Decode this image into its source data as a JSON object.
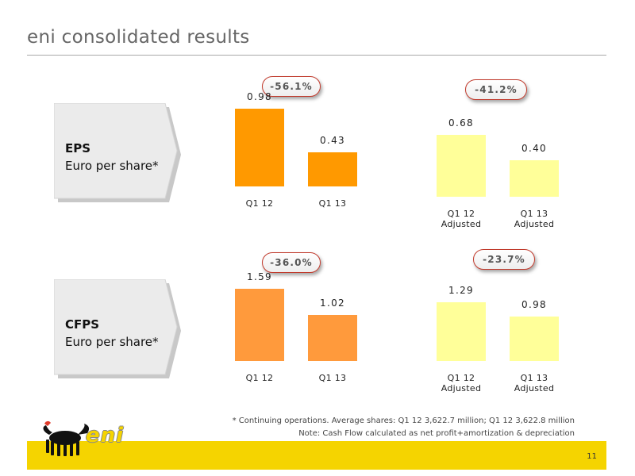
{
  "page": {
    "title": "eni consolidated results",
    "page_number": "11",
    "logo_text": "eni"
  },
  "eps_panel": {
    "label_bold": "EPS",
    "label_sub": "Euro per share*"
  },
  "cfps_panel": {
    "label_bold": "CFPS",
    "label_sub": "Euro per share*"
  },
  "badges": {
    "eps_reported": "-56.1%",
    "eps_adjusted": "-41.2%",
    "cfps_reported": "-36.0%",
    "cfps_adjusted": "-23.7%"
  },
  "colors": {
    "eps_reported_bar": "#ff9900",
    "cfps_reported_bar": "#ff9a3c",
    "adjusted_bar": "#ffff99",
    "badge_border": "#c0392b",
    "footer_band": "#f5d400"
  },
  "chart_data": [
    {
      "type": "bar",
      "categories": [
        "Q1 12",
        "Q1 13"
      ],
      "values": [
        0.98,
        0.43
      ],
      "value_labels": [
        "0.98",
        "0.43"
      ]
    },
    {
      "type": "bar",
      "categories": [
        "Q1 12",
        "Q1 13"
      ],
      "category_sub": [
        "Adjusted",
        "Adjusted"
      ],
      "values": [
        0.68,
        0.4
      ],
      "value_labels": [
        "0.68",
        "0.40"
      ]
    },
    {
      "type": "bar",
      "categories": [
        "Q1 12",
        "Q1 13"
      ],
      "values": [
        1.59,
        1.02
      ],
      "value_labels": [
        "1.59",
        "1.02"
      ]
    },
    {
      "type": "bar",
      "categories": [
        "Q1 12",
        "Q1 13"
      ],
      "category_sub": [
        "Adjusted",
        "Adjusted"
      ],
      "values": [
        1.29,
        0.98
      ],
      "value_labels": [
        "1.29",
        "0.98"
      ]
    }
  ],
  "footnotes": {
    "line1": "* Continuing operations. Average shares: Q1 12 3,622.7 million; Q1 12 3,622.8 million",
    "line2": "Note: Cash Flow calculated as net profit+amortization & depreciation"
  }
}
